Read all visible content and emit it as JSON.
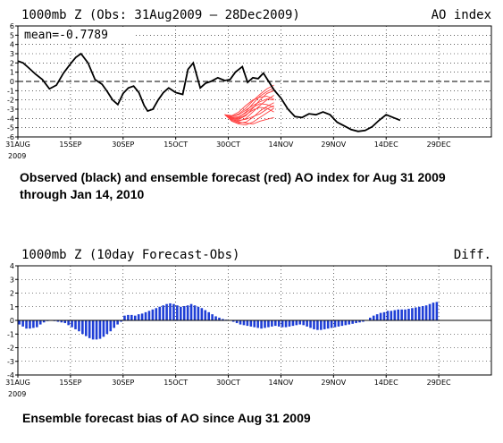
{
  "chart_data": [
    {
      "type": "line",
      "title": "1000mb Z (Obs: 31Aug2009 – 28Dec2009)",
      "title_right": "AO index",
      "annotation": "mean=-0.7789",
      "x_tick_labels": [
        "31AUG",
        "15SEP",
        "30SEP",
        "15OCT",
        "30OCT",
        "14NOV",
        "29NOV",
        "14DEC",
        "29DEC"
      ],
      "x_year_label": "2009",
      "ylim": [
        -6,
        6
      ],
      "y_ticks": [
        -6,
        -5,
        -4,
        -3,
        -2,
        -1,
        0,
        1,
        2,
        3,
        4,
        5,
        6
      ],
      "grid": true,
      "series": [
        {
          "color": "#000000",
          "x": [
            0,
            3,
            6,
            10,
            14,
            18,
            22,
            26,
            30,
            33,
            36,
            40,
            44,
            48,
            51,
            54,
            57,
            60,
            63,
            66,
            69,
            72,
            74,
            77,
            80,
            83,
            86,
            90,
            94,
            97,
            100,
            104,
            107,
            110,
            114,
            118,
            121,
            124,
            128,
            131,
            134,
            137,
            140,
            143,
            146,
            150,
            154,
            158,
            162,
            166,
            170,
            174,
            178,
            182,
            186,
            190,
            194,
            198,
            202,
            206,
            210,
            214,
            218
          ],
          "values": [
            2.2,
            2.0,
            1.5,
            0.8,
            0.2,
            -0.8,
            -0.4,
            0.9,
            1.9,
            2.6,
            3.0,
            2.0,
            0.2,
            -0.3,
            -1.1,
            -2.0,
            -2.5,
            -1.3,
            -0.7,
            -0.5,
            -1.2,
            -2.6,
            -3.2,
            -3.0,
            -2.0,
            -1.2,
            -0.7,
            -1.2,
            -1.4,
            1.3,
            2.0,
            -0.7,
            -0.2,
            0.0,
            0.4,
            0.1,
            0.2,
            1.0,
            1.6,
            -0.1,
            0.4,
            0.3,
            0.9,
            0.0,
            -0.9,
            -1.8,
            -3.0,
            -3.8,
            -3.9,
            -3.5,
            -3.6,
            -3.3,
            -3.6,
            -4.4,
            -4.8,
            -5.2,
            -5.4,
            -5.3,
            -4.9,
            -4.2,
            -3.6,
            -3.9,
            -4.2
          ]
        }
      ],
      "ensemble": {
        "color": "#ff4040",
        "x_start": 118,
        "start_value": -3.6,
        "members": [
          [
            -3.6,
            -3.8,
            -3.5,
            -2.9,
            -2.1,
            -1.4,
            -0.8,
            -0.4
          ],
          [
            -3.6,
            -4.0,
            -3.9,
            -3.3,
            -2.4,
            -1.6,
            -1.1,
            -0.7
          ],
          [
            -3.6,
            -3.9,
            -4.1,
            -3.7,
            -2.9,
            -2.0,
            -1.3,
            -1.0
          ],
          [
            -3.6,
            -4.1,
            -4.3,
            -4.0,
            -3.3,
            -2.6,
            -2.0,
            -1.5
          ],
          [
            -3.6,
            -3.8,
            -3.6,
            -3.1,
            -2.6,
            -2.2,
            -1.9,
            -2.0
          ],
          [
            -3.6,
            -4.2,
            -4.5,
            -4.4,
            -3.9,
            -3.2,
            -2.7,
            -2.3
          ],
          [
            -3.6,
            -3.7,
            -3.3,
            -2.6,
            -2.0,
            -1.7,
            -1.6,
            -1.9
          ],
          [
            -3.6,
            -4.0,
            -4.2,
            -4.1,
            -3.8,
            -3.5,
            -3.0,
            -2.6
          ],
          [
            -3.6,
            -4.3,
            -4.6,
            -4.7,
            -4.4,
            -3.9,
            -3.4,
            -2.9
          ],
          [
            -3.6,
            -3.9,
            -3.8,
            -3.4,
            -2.8,
            -2.4,
            -2.5,
            -2.8
          ],
          [
            -3.6,
            -4.1,
            -4.4,
            -4.5,
            -4.6,
            -4.3,
            -4.1,
            -3.9
          ],
          [
            -3.6,
            -4.0,
            -4.0,
            -3.6,
            -3.1,
            -2.8,
            -2.9,
            -3.3
          ]
        ]
      }
    },
    {
      "type": "bar",
      "title": "1000mb Z (10day Forecast-Obs)",
      "title_right": "Diff.",
      "x_tick_labels": [
        "31AUG",
        "15SEP",
        "30SEP",
        "15OCT",
        "30OCT",
        "14NOV",
        "29NOV",
        "14DEC",
        "29DEC"
      ],
      "x_year_label": "2009",
      "ylim": [
        -4,
        4
      ],
      "y_ticks": [
        -4,
        -3,
        -2,
        -1,
        0,
        1,
        2,
        3,
        4
      ],
      "grid": true,
      "color": "#1f3fd6",
      "x": [
        0,
        1,
        2,
        3,
        4,
        5,
        6,
        7,
        8,
        9,
        10,
        11,
        12,
        13,
        14,
        15,
        16,
        17,
        18,
        19,
        20,
        21,
        22,
        23,
        24,
        25,
        26,
        27,
        28,
        29,
        30,
        31,
        32,
        33,
        34,
        35,
        36,
        37,
        38,
        39,
        40,
        41,
        42,
        43,
        44,
        45,
        46,
        47,
        48,
        49,
        50,
        51,
        52,
        53,
        54,
        55,
        56,
        57,
        58,
        59,
        60,
        61,
        62,
        63,
        64,
        65,
        66,
        67,
        68,
        69,
        70,
        71,
        72,
        73,
        74,
        75,
        76,
        77,
        78,
        79,
        80,
        81,
        82,
        83,
        84,
        85,
        86,
        87,
        88,
        89,
        90,
        91,
        92,
        93,
        94,
        95,
        96,
        97,
        98,
        99,
        100,
        101,
        102,
        103,
        104,
        105,
        106,
        107,
        108,
        109,
        110,
        111,
        112,
        113,
        114,
        115,
        116,
        117,
        118,
        119
      ],
      "values": [
        -0.3,
        -0.45,
        -0.6,
        -0.6,
        -0.55,
        -0.5,
        -0.3,
        -0.15,
        -0.05,
        0,
        -0.05,
        -0.1,
        -0.15,
        -0.2,
        -0.35,
        -0.5,
        -0.65,
        -0.8,
        -1.0,
        -1.15,
        -1.3,
        -1.4,
        -1.4,
        -1.35,
        -1.2,
        -1.0,
        -0.8,
        -0.55,
        -0.3,
        -0.1,
        0.35,
        0.4,
        0.4,
        0.35,
        0.45,
        0.5,
        0.6,
        0.7,
        0.8,
        0.9,
        1.0,
        1.1,
        1.2,
        1.25,
        1.2,
        1.1,
        1.0,
        1.05,
        1.1,
        1.2,
        1.1,
        1.0,
        0.9,
        0.75,
        0.6,
        0.45,
        0.3,
        0.2,
        0.1,
        0.05,
        0,
        -0.1,
        -0.2,
        -0.3,
        -0.35,
        -0.4,
        -0.45,
        -0.5,
        -0.55,
        -0.6,
        -0.55,
        -0.5,
        -0.45,
        -0.4,
        -0.45,
        -0.5,
        -0.5,
        -0.45,
        -0.4,
        -0.35,
        -0.3,
        -0.35,
        -0.45,
        -0.55,
        -0.65,
        -0.7,
        -0.7,
        -0.65,
        -0.6,
        -0.55,
        -0.5,
        -0.45,
        -0.4,
        -0.35,
        -0.3,
        -0.25,
        -0.2,
        -0.15,
        -0.1,
        0,
        0.2,
        0.35,
        0.45,
        0.55,
        0.6,
        0.7,
        0.7,
        0.75,
        0.8,
        0.8,
        0.8,
        0.85,
        0.9,
        0.95,
        1.0,
        1.05,
        1.1,
        1.2,
        1.3,
        1.35
      ]
    }
  ],
  "captions": {
    "top": "Observed (black) and ensemble forecast (red) AO index for Aug 31 2009 through Jan 14, 2010",
    "bottom": "Ensemble forecast bias of AO since Aug 31 2009"
  }
}
